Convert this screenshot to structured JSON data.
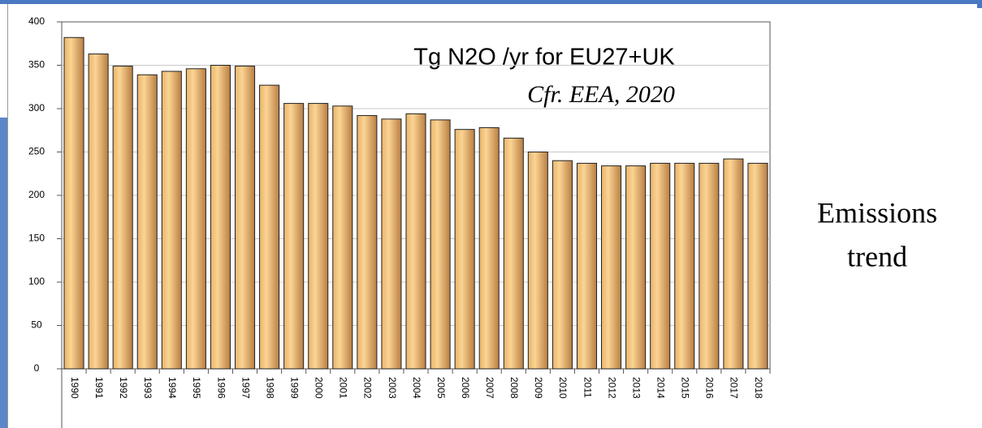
{
  "chart_data": {
    "type": "bar",
    "title": "Tg N2O /yr for EU27+UK",
    "subtitle": "Cfr. EEA, 2020",
    "annotation": [
      "Emissions",
      "trend"
    ],
    "categories": [
      "1990",
      "1991",
      "1992",
      "1993",
      "1994",
      "1995",
      "1996",
      "1997",
      "1998",
      "1999",
      "2000",
      "2001",
      "2002",
      "2003",
      "2004",
      "2005",
      "2006",
      "2007",
      "2008",
      "2009",
      "2010",
      "2011",
      "2012",
      "2013",
      "2014",
      "2015",
      "2016",
      "2017",
      "2018"
    ],
    "values": [
      382,
      363,
      349,
      339,
      343,
      346,
      350,
      349,
      327,
      306,
      306,
      303,
      292,
      288,
      294,
      287,
      276,
      278,
      266,
      250,
      240,
      237,
      234,
      234,
      237,
      237,
      237,
      242,
      237
    ],
    "color": "#f2c47c",
    "ylim": [
      0,
      400
    ],
    "yticks": [
      0,
      50,
      100,
      150,
      200,
      250,
      300,
      350,
      400
    ],
    "grid": true
  }
}
